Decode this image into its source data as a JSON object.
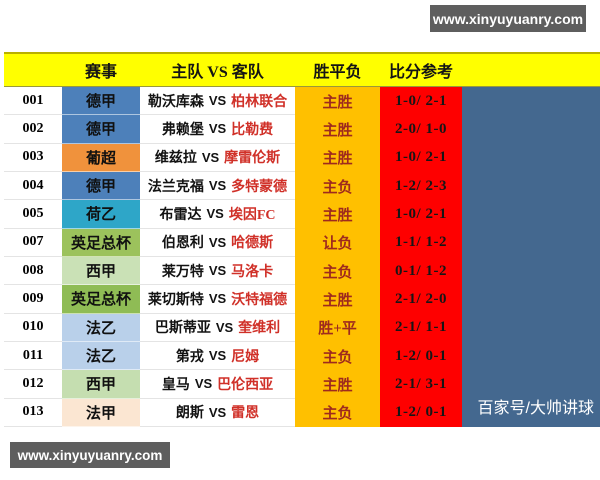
{
  "watermark_top": "www.xinyuyuanry.com",
  "watermark_bottom": "www.xinyuyuanry.com",
  "credit": "百家号/大帅讲球",
  "vs_label": "VS",
  "header": {
    "league_col": "赛事",
    "teams_col": "主队 VS 客队",
    "result_col": "胜平负",
    "score_col": "比分参考"
  },
  "colors": {
    "header_bg": "#ffff00",
    "result_bg": "#ffc000",
    "score_bg": "#fe0000",
    "side_panel_bg": "#44688f",
    "result_text": "#9e2a1e",
    "away_text": "#d03028"
  },
  "rows": [
    {
      "id": "001",
      "league": "德甲",
      "league_color": "#4d80ba",
      "home": "勒沃库森",
      "away": "柏林联合",
      "result": "主胜",
      "score": "1-0/ 2-1"
    },
    {
      "id": "002",
      "league": "德甲",
      "league_color": "#4d80ba",
      "home": "弗赖堡",
      "away": "比勒费",
      "result": "主胜",
      "score": "2-0/ 1-0"
    },
    {
      "id": "003",
      "league": "葡超",
      "league_color": "#f0923c",
      "home": "维兹拉",
      "away": "摩雷伦斯",
      "result": "主胜",
      "score": "1-0/ 2-1"
    },
    {
      "id": "004",
      "league": "德甲",
      "league_color": "#4d80ba",
      "home": "法兰克福",
      "away": "多特蒙德",
      "result": "主负",
      "score": "1-2/ 2-3"
    },
    {
      "id": "005",
      "league": "荷乙",
      "league_color": "#2ea6c8",
      "home": "布雷达",
      "away": "埃因FC",
      "result": "主胜",
      "score": "1-0/ 2-1"
    },
    {
      "id": "007",
      "league": "英足总杯",
      "league_color": "#9cc25c",
      "home": "伯恩利",
      "away": "哈德斯",
      "result": "让负",
      "score": "1-1/ 1-2"
    },
    {
      "id": "008",
      "league": "西甲",
      "league_color": "#cae1b6",
      "home": "莱万特",
      "away": "马洛卡",
      "result": "主负",
      "score": "0-1/ 1-2"
    },
    {
      "id": "009",
      "league": "英足总杯",
      "league_color": "#8fbc55",
      "home": "莱切斯特",
      "away": "沃特福德",
      "result": "主胜",
      "score": "2-1/ 2-0"
    },
    {
      "id": "010",
      "league": "法乙",
      "league_color": "#b9d0ea",
      "home": "巴斯蒂亚",
      "away": "奎维利",
      "result": "胜+平",
      "score": "2-1/ 1-1"
    },
    {
      "id": "011",
      "league": "法乙",
      "league_color": "#b9d0ea",
      "home": "第戎",
      "away": "尼姆",
      "result": "主负",
      "score": "1-2/ 0-1"
    },
    {
      "id": "012",
      "league": "西甲",
      "league_color": "#c5deb0",
      "home": "皇马",
      "away": "巴伦西亚",
      "result": "主胜",
      "score": "2-1/ 3-1"
    },
    {
      "id": "013",
      "league": "法甲",
      "league_color": "#fbe6d2",
      "home": "朗斯",
      "away": "雷恩",
      "result": "主负",
      "score": "1-2/ 0-1"
    }
  ]
}
